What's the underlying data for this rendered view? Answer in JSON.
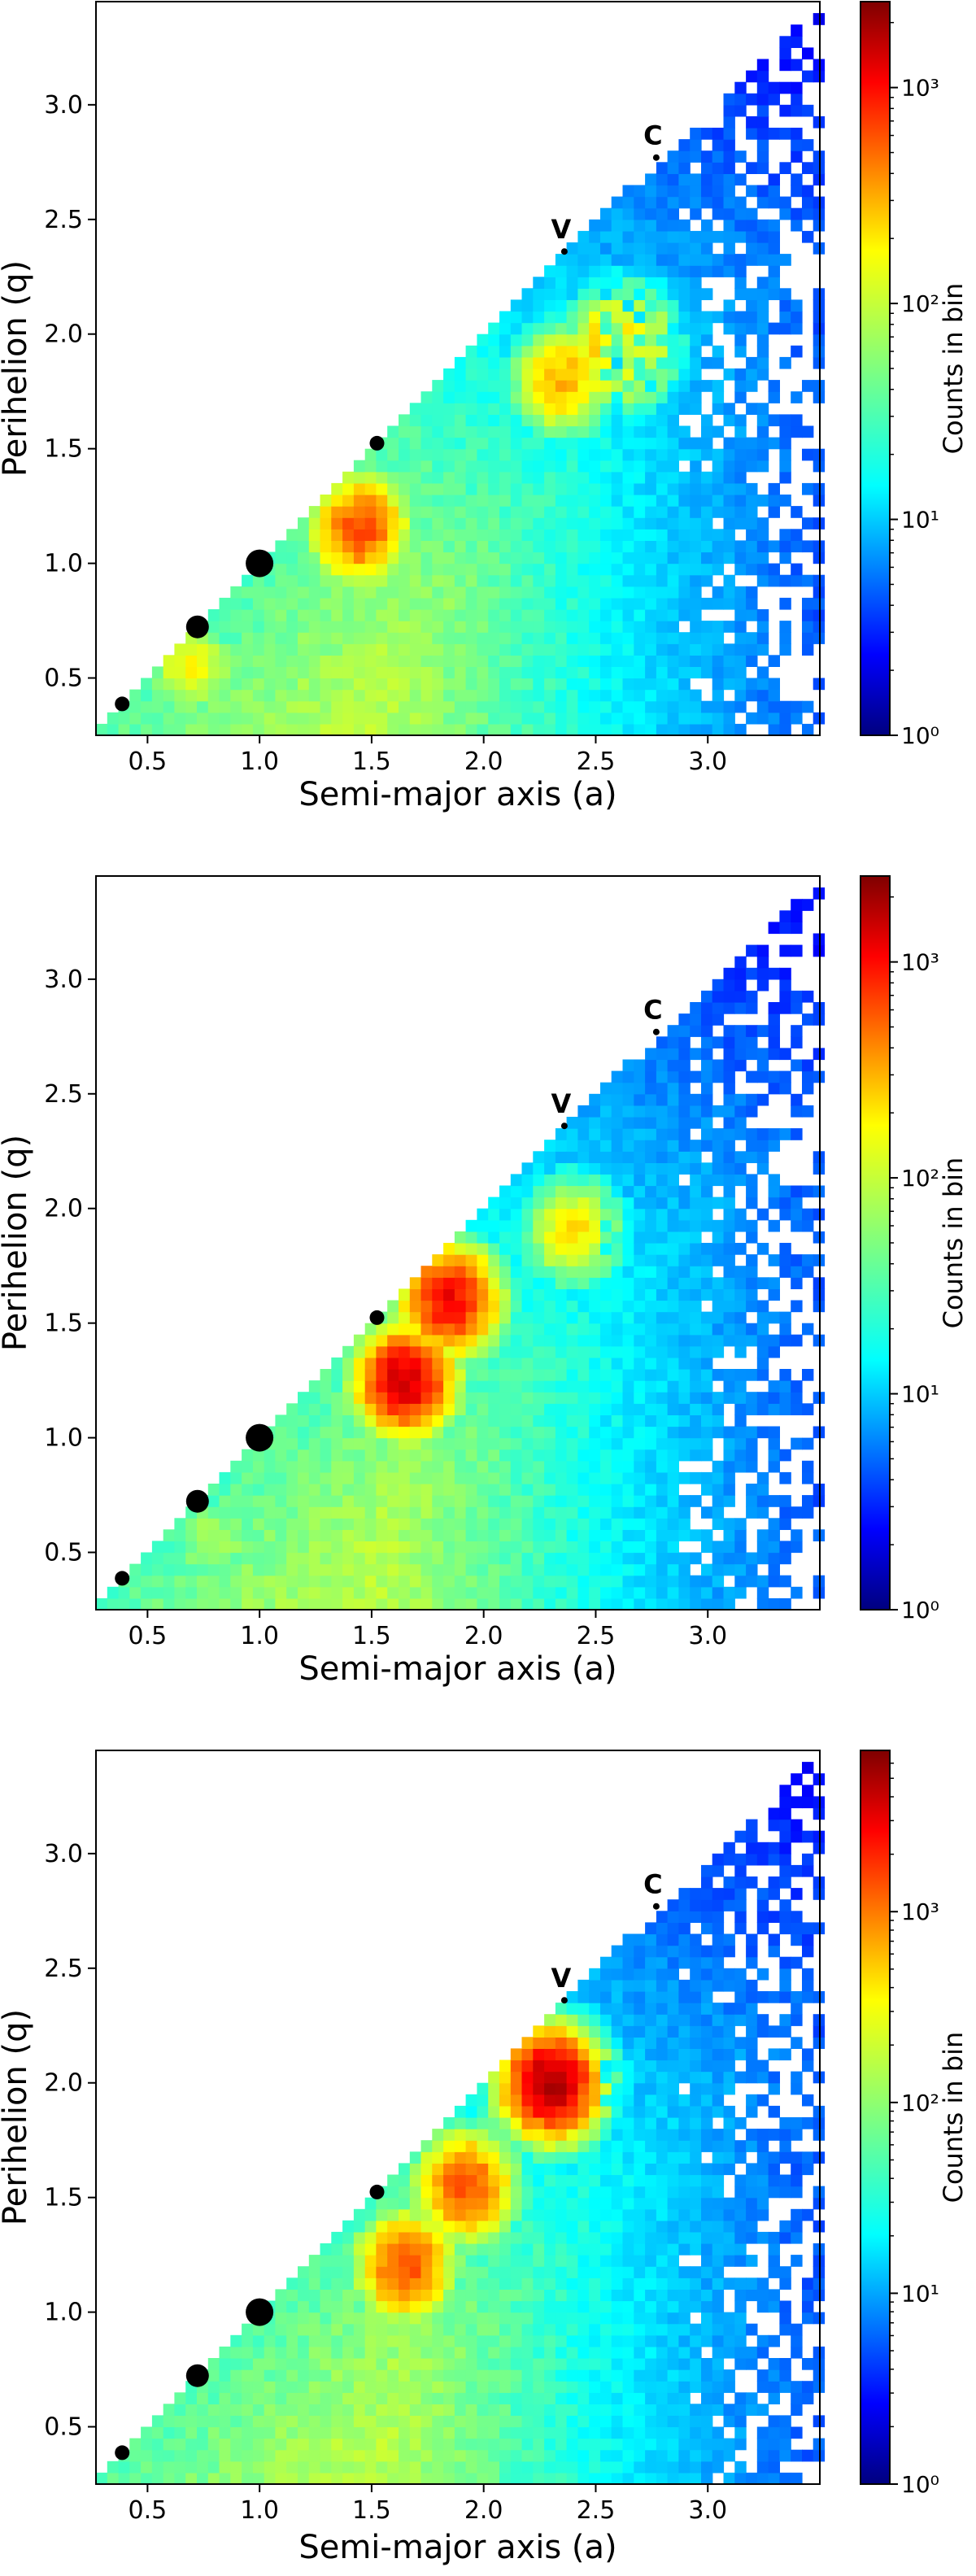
{
  "chart_data": [
    {
      "type": "heatmap",
      "panel": "top",
      "xlabel": "Semi-major axis (a)",
      "ylabel": "Perihelion (q)",
      "xlim": [
        0.27,
        3.5
      ],
      "ylim": [
        0.25,
        3.45
      ],
      "xticks": [
        0.5,
        1.0,
        1.5,
        2.0,
        2.5,
        3.0
      ],
      "xtick_labels": [
        "0.5",
        "1.0",
        "1.5",
        "2.0",
        "2.5",
        "3.0"
      ],
      "yticks": [
        0.5,
        1.0,
        1.5,
        2.0,
        2.5,
        3.0
      ],
      "ytick_labels": [
        "0.5",
        "1.0",
        "1.5",
        "2.0",
        "2.5",
        "3.0"
      ],
      "colorbar": {
        "label": "Counts in bin",
        "scale": "log",
        "range": [
          1,
          2500
        ],
        "ticks": [
          1,
          10,
          100,
          1000
        ],
        "tick_labels": [
          "10⁰",
          "10¹",
          "10²",
          "10³"
        ]
      },
      "hotspots": [
        {
          "a": 1.45,
          "q": 1.15,
          "level": 0.8
        },
        {
          "a": 2.62,
          "q": 1.95,
          "level": 0.75
        },
        {
          "a": 2.35,
          "q": 1.8,
          "level": 0.7
        },
        {
          "a": 0.7,
          "q": 0.55,
          "level": 0.62
        }
      ],
      "markers": [
        {
          "a": 0.387,
          "q": 0.387,
          "size": "small",
          "label": ""
        },
        {
          "a": 0.723,
          "q": 0.723,
          "size": "medium",
          "label": ""
        },
        {
          "a": 1.0,
          "q": 1.0,
          "size": "large",
          "label": ""
        },
        {
          "a": 1.524,
          "q": 1.524,
          "size": "small",
          "label": ""
        },
        {
          "a": 2.36,
          "q": 2.36,
          "size": "tiny",
          "label": "V"
        },
        {
          "a": 2.77,
          "q": 2.77,
          "size": "tiny",
          "label": "C"
        }
      ]
    },
    {
      "type": "heatmap",
      "panel": "middle",
      "xlabel": "Semi-major axis (a)",
      "ylabel": "Perihelion (q)",
      "xlim": [
        0.27,
        3.5
      ],
      "ylim": [
        0.25,
        3.45
      ],
      "xticks": [
        0.5,
        1.0,
        1.5,
        2.0,
        2.5,
        3.0
      ],
      "xtick_labels": [
        "0.5",
        "1.0",
        "1.5",
        "2.0",
        "2.5",
        "3.0"
      ],
      "yticks": [
        0.5,
        1.0,
        1.5,
        2.0,
        2.5,
        3.0
      ],
      "ytick_labels": [
        "0.5",
        "1.0",
        "1.5",
        "2.0",
        "2.5",
        "3.0"
      ],
      "colorbar": {
        "label": "Counts in bin",
        "scale": "log",
        "range": [
          1,
          2500
        ],
        "ticks": [
          1,
          10,
          100,
          1000
        ],
        "tick_labels": [
          "10⁰",
          "10¹",
          "10²",
          "10³"
        ]
      },
      "hotspots": [
        {
          "a": 1.65,
          "q": 1.25,
          "level": 0.92
        },
        {
          "a": 1.85,
          "q": 1.6,
          "level": 0.88
        },
        {
          "a": 2.4,
          "q": 1.9,
          "level": 0.65
        },
        {
          "a": 0.8,
          "q": 0.55,
          "level": 0.55
        }
      ],
      "markers": [
        {
          "a": 0.387,
          "q": 0.387,
          "size": "small",
          "label": ""
        },
        {
          "a": 0.723,
          "q": 0.723,
          "size": "medium",
          "label": ""
        },
        {
          "a": 1.0,
          "q": 1.0,
          "size": "large",
          "label": ""
        },
        {
          "a": 1.524,
          "q": 1.524,
          "size": "small",
          "label": ""
        },
        {
          "a": 2.36,
          "q": 2.36,
          "size": "tiny",
          "label": "V"
        },
        {
          "a": 2.77,
          "q": 2.77,
          "size": "tiny",
          "label": "C"
        }
      ]
    },
    {
      "type": "heatmap",
      "panel": "bottom",
      "xlabel": "Semi-major axis (a)",
      "ylabel": "Perihelion (q)",
      "xlim": [
        0.27,
        3.5
      ],
      "ylim": [
        0.25,
        3.45
      ],
      "xticks": [
        0.5,
        1.0,
        1.5,
        2.0,
        2.5,
        3.0
      ],
      "xtick_labels": [
        "0.5",
        "1.0",
        "1.5",
        "2.0",
        "2.5",
        "3.0"
      ],
      "yticks": [
        0.5,
        1.0,
        1.5,
        2.0,
        2.5,
        3.0
      ],
      "ytick_labels": [
        "0.5",
        "1.0",
        "1.5",
        "2.0",
        "2.5",
        "3.0"
      ],
      "colorbar": {
        "label": "Counts in bin",
        "scale": "log",
        "range": [
          1,
          7000
        ],
        "ticks": [
          1,
          10,
          100,
          1000
        ],
        "tick_labels": [
          "10⁰",
          "10¹",
          "10²",
          "10³"
        ]
      },
      "hotspots": [
        {
          "a": 2.3,
          "q": 2.0,
          "level": 0.96
        },
        {
          "a": 1.65,
          "q": 1.2,
          "level": 0.8
        },
        {
          "a": 1.92,
          "q": 1.55,
          "level": 0.8
        },
        {
          "a": 0.85,
          "q": 0.65,
          "level": 0.4
        }
      ],
      "markers": [
        {
          "a": 0.387,
          "q": 0.387,
          "size": "small",
          "label": ""
        },
        {
          "a": 0.723,
          "q": 0.723,
          "size": "medium",
          "label": ""
        },
        {
          "a": 1.0,
          "q": 1.0,
          "size": "large",
          "label": ""
        },
        {
          "a": 1.524,
          "q": 1.524,
          "size": "small",
          "label": ""
        },
        {
          "a": 2.36,
          "q": 2.36,
          "size": "tiny",
          "label": "V"
        },
        {
          "a": 2.77,
          "q": 2.77,
          "size": "tiny",
          "label": "C"
        }
      ]
    }
  ]
}
